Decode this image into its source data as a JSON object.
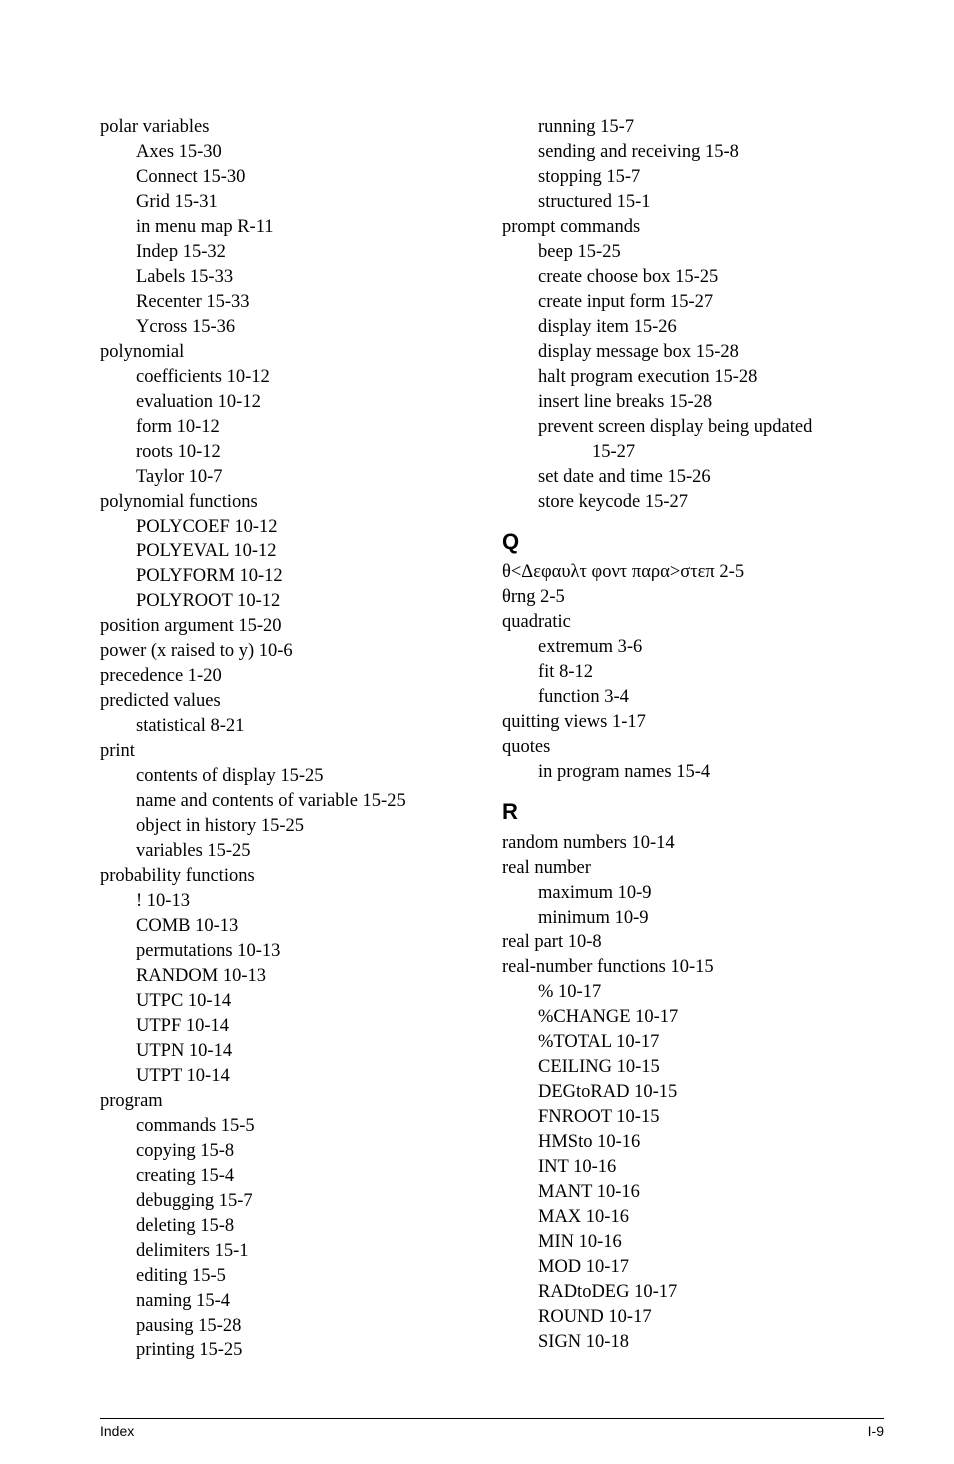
{
  "leftColumn": {
    "entries": [
      {
        "text": "polar variables",
        "indent": 0
      },
      {
        "text": "Axes 15-30",
        "indent": 1
      },
      {
        "text": "Connect 15-30",
        "indent": 1
      },
      {
        "text": "Grid 15-31",
        "indent": 1
      },
      {
        "text": "in menu map R-11",
        "indent": 1
      },
      {
        "text": "Indep 15-32",
        "indent": 1
      },
      {
        "text": "Labels 15-33",
        "indent": 1
      },
      {
        "text": "Recenter 15-33",
        "indent": 1
      },
      {
        "text": "Ycross 15-36",
        "indent": 1
      },
      {
        "text": "polynomial",
        "indent": 0
      },
      {
        "text": "coefficients 10-12",
        "indent": 1
      },
      {
        "text": "evaluation 10-12",
        "indent": 1
      },
      {
        "text": "form 10-12",
        "indent": 1
      },
      {
        "text": "roots 10-12",
        "indent": 1
      },
      {
        "text": "Taylor 10-7",
        "indent": 1
      },
      {
        "text": "polynomial functions",
        "indent": 0
      },
      {
        "text": "POLYCOEF 10-12",
        "indent": 1
      },
      {
        "text": "POLYEVAL 10-12",
        "indent": 1
      },
      {
        "text": "POLYFORM 10-12",
        "indent": 1
      },
      {
        "text": "POLYROOT 10-12",
        "indent": 1
      },
      {
        "text": "position argument 15-20",
        "indent": 0
      },
      {
        "text": "power (x raised to y) 10-6",
        "indent": 0
      },
      {
        "text": "precedence 1-20",
        "indent": 0
      },
      {
        "text": "predicted values",
        "indent": 0
      },
      {
        "text": "statistical 8-21",
        "indent": 1
      },
      {
        "text": "print",
        "indent": 0
      },
      {
        "text": "contents of display 15-25",
        "indent": 1
      },
      {
        "text": "name and contents of variable 15-25",
        "indent": 1
      },
      {
        "text": "object in history 15-25",
        "indent": 1
      },
      {
        "text": "variables 15-25",
        "indent": 1
      },
      {
        "text": "probability functions",
        "indent": 0
      },
      {
        "text": "! 10-13",
        "indent": 1
      },
      {
        "text": "COMB 10-13",
        "indent": 1
      },
      {
        "text": "permutations 10-13",
        "indent": 1
      },
      {
        "text": "RANDOM 10-13",
        "indent": 1
      },
      {
        "text": "UTPC 10-14",
        "indent": 1
      },
      {
        "text": "UTPF 10-14",
        "indent": 1
      },
      {
        "text": "UTPN 10-14",
        "indent": 1
      },
      {
        "text": "UTPT 10-14",
        "indent": 1
      },
      {
        "text": "program",
        "indent": 0
      },
      {
        "text": "commands 15-5",
        "indent": 1
      },
      {
        "text": "copying 15-8",
        "indent": 1
      },
      {
        "text": "creating 15-4",
        "indent": 1
      },
      {
        "text": "debugging 15-7",
        "indent": 1
      },
      {
        "text": "deleting 15-8",
        "indent": 1
      },
      {
        "text": "delimiters 15-1",
        "indent": 1
      },
      {
        "text": "editing 15-5",
        "indent": 1
      },
      {
        "text": "naming 15-4",
        "indent": 1
      },
      {
        "text": "pausing 15-28",
        "indent": 1
      },
      {
        "text": "printing 15-25",
        "indent": 1
      }
    ]
  },
  "rightColumn": {
    "entries": [
      {
        "text": "running 15-7",
        "indent": 1
      },
      {
        "text": "sending and receiving 15-8",
        "indent": 1
      },
      {
        "text": "stopping 15-7",
        "indent": 1
      },
      {
        "text": "structured 15-1",
        "indent": 1
      },
      {
        "text": "prompt commands",
        "indent": 0
      },
      {
        "text": "beep 15-25",
        "indent": 1
      },
      {
        "text": "create choose box 15-25",
        "indent": 1
      },
      {
        "text": "create input form 15-27",
        "indent": 1
      },
      {
        "text": "display item 15-26",
        "indent": 1
      },
      {
        "text": "display message box 15-28",
        "indent": 1
      },
      {
        "text": "halt program execution 15-28",
        "indent": 1
      },
      {
        "text": "insert line breaks 15-28",
        "indent": 1
      },
      {
        "text": "prevent screen display being updated",
        "indent": 1
      },
      {
        "text": "15-27",
        "indent": 2
      },
      {
        "text": "set date and time 15-26",
        "indent": 1
      },
      {
        "text": "store keycode 15-27",
        "indent": 1
      }
    ],
    "sectionQ": {
      "letter": "Q",
      "entries": [
        {
          "text": "θ<Δεφαυλτ φοντ παρα>στεπ 2-5",
          "indent": 0
        },
        {
          "text": "θrng 2-5",
          "indent": 0
        },
        {
          "text": "quadratic",
          "indent": 0
        },
        {
          "text": "extremum 3-6",
          "indent": 1
        },
        {
          "text": "fit 8-12",
          "indent": 1
        },
        {
          "text": "function 3-4",
          "indent": 1
        },
        {
          "text": "quitting views 1-17",
          "indent": 0
        },
        {
          "text": "quotes",
          "indent": 0
        },
        {
          "text": "in program names 15-4",
          "indent": 1
        }
      ]
    },
    "sectionR": {
      "letter": "R",
      "entries": [
        {
          "text": "random numbers 10-14",
          "indent": 0
        },
        {
          "text": "real number",
          "indent": 0
        },
        {
          "text": "maximum 10-9",
          "indent": 1
        },
        {
          "text": "minimum 10-9",
          "indent": 1
        },
        {
          "text": "real part 10-8",
          "indent": 0
        },
        {
          "text": "real-number functions 10-15",
          "indent": 0
        },
        {
          "text": "% 10-17",
          "indent": 1
        },
        {
          "text": "%CHANGE 10-17",
          "indent": 1
        },
        {
          "text": "%TOTAL 10-17",
          "indent": 1
        },
        {
          "text": "CEILING 10-15",
          "indent": 1
        },
        {
          "text": "DEGtoRAD 10-15",
          "indent": 1
        },
        {
          "text": "FNROOT 10-15",
          "indent": 1
        },
        {
          "text": "HMSto 10-16",
          "indent": 1
        },
        {
          "text": "INT 10-16",
          "indent": 1
        },
        {
          "text": "MANT 10-16",
          "indent": 1
        },
        {
          "text": "MAX 10-16",
          "indent": 1
        },
        {
          "text": "MIN 10-16",
          "indent": 1
        },
        {
          "text": "MOD 10-17",
          "indent": 1
        },
        {
          "text": "RADtoDEG 10-17",
          "indent": 1
        },
        {
          "text": "ROUND 10-17",
          "indent": 1
        },
        {
          "text": "SIGN 10-18",
          "indent": 1
        }
      ]
    }
  },
  "footer": {
    "left": "Index",
    "right": "I-9"
  }
}
